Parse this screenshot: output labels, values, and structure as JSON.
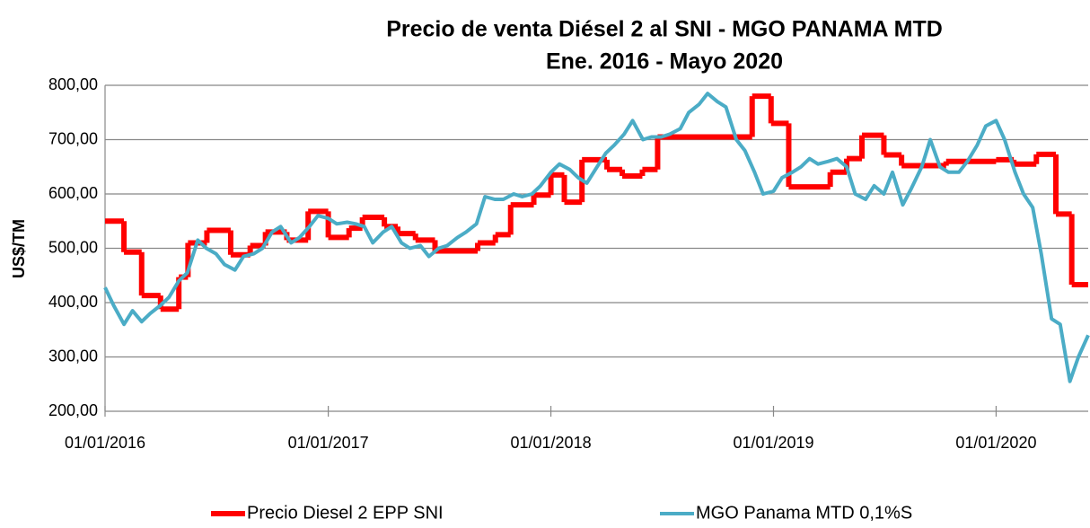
{
  "chart_data": {
    "type": "line",
    "title": "Precio de venta Diésel 2 al SNI  - MGO  PANAMA MTD",
    "subtitle": "Ene. 2016 - Mayo 2020",
    "y_label": "US$/TM",
    "xlim": [
      "01/01/2016",
      "31/05/2020"
    ],
    "xticks": [
      "01/01/2016",
      "01/01/2017",
      "01/01/2018",
      "01/01/2019",
      "01/01/2020"
    ],
    "ylim": [
      200,
      800
    ],
    "yticks": [
      {
        "value": 200,
        "label": "200,00"
      },
      {
        "value": 300,
        "label": "300,00"
      },
      {
        "value": 400,
        "label": "400,00"
      },
      {
        "value": 500,
        "label": "500,00"
      },
      {
        "value": 600,
        "label": "600,00"
      },
      {
        "value": 700,
        "label": "700,00"
      },
      {
        "value": 800,
        "label": "800,00"
      }
    ],
    "grid": true,
    "legend": "bottom",
    "series": [
      {
        "name": "Precio Diesel 2 EPP SNI",
        "color": "#ff0000",
        "step": true,
        "x": [
          "01/01/2016",
          "01/02/2016",
          "01/03/2016",
          "01/04/2016",
          "01/05/2016",
          "16/05/2016",
          "16/06/2016",
          "25/07/2016",
          "26/08/2016",
          "20/09/2016",
          "25/10/2016",
          "29/11/2016",
          "01/01/2017",
          "04/02/2017",
          "26/02/2017",
          "03/04/2017",
          "25/04/2017",
          "24/05/2017",
          "25/06/2017",
          "03/09/2017",
          "02/10/2017",
          "27/10/2017",
          "04/12/2017",
          "01/01/2018",
          "23/01/2018",
          "21/02/2018",
          "03/04/2018",
          "28/04/2018",
          "31/05/2018",
          "25/06/2018",
          "27/11/2018",
          "28/12/2018",
          "26/01/2019",
          "04/04/2019",
          "01/05/2019",
          "26/05/2019",
          "01/07/2019",
          "30/07/2019",
          "11/10/2019",
          "01/01/2020",
          "30/01/2020",
          "07/03/2020",
          "08/04/2020",
          "04/05/2020"
        ],
        "values": [
          550,
          493,
          413,
          388,
          447,
          510,
          533,
          488,
          505,
          530,
          515,
          568,
          520,
          537,
          557,
          540,
          527,
          515,
          495,
          510,
          525,
          580,
          598,
          635,
          585,
          663,
          645,
          633,
          645,
          705,
          780,
          730,
          613,
          640,
          665,
          708,
          672,
          652,
          660,
          663,
          655,
          673,
          563,
          433
        ]
      },
      {
        "name": "MGO Panama MTD 0,1%S",
        "color": "#4bacc6",
        "step": false,
        "x": [
          "01/01/2016",
          "15/01/2016",
          "01/02/2016",
          "15/02/2016",
          "01/03/2016",
          "15/03/2016",
          "01/04/2016",
          "15/04/2016",
          "01/05/2016",
          "15/05/2016",
          "01/06/2016",
          "15/06/2016",
          "01/07/2016",
          "15/07/2016",
          "01/08/2016",
          "15/08/2016",
          "01/09/2016",
          "15/09/2016",
          "01/10/2016",
          "15/10/2016",
          "01/11/2016",
          "15/11/2016",
          "01/12/2016",
          "15/12/2016",
          "01/01/2017",
          "15/01/2017",
          "01/02/2017",
          "15/02/2017",
          "01/03/2017",
          "15/03/2017",
          "01/04/2017",
          "15/04/2017",
          "01/05/2017",
          "15/05/2017",
          "01/06/2017",
          "15/06/2017",
          "01/07/2017",
          "15/07/2017",
          "01/08/2017",
          "15/08/2017",
          "01/09/2017",
          "15/09/2017",
          "01/10/2017",
          "15/10/2017",
          "01/11/2017",
          "15/11/2017",
          "01/12/2017",
          "15/12/2017",
          "01/01/2018",
          "15/01/2018",
          "01/02/2018",
          "15/02/2018",
          "01/03/2018",
          "15/03/2018",
          "01/04/2018",
          "15/04/2018",
          "01/05/2018",
          "15/05/2018",
          "01/06/2018",
          "15/06/2018",
          "01/07/2018",
          "15/07/2018",
          "01/08/2018",
          "15/08/2018",
          "01/09/2018",
          "15/09/2018",
          "01/10/2018",
          "15/10/2018",
          "01/11/2018",
          "15/11/2018",
          "01/12/2018",
          "15/12/2018",
          "01/01/2019",
          "15/01/2019",
          "01/02/2019",
          "15/02/2019",
          "01/03/2019",
          "15/03/2019",
          "01/04/2019",
          "15/04/2019",
          "01/05/2019",
          "15/05/2019",
          "01/06/2019",
          "15/06/2019",
          "01/07/2019",
          "15/07/2019",
          "01/08/2019",
          "15/08/2019",
          "01/09/2019",
          "15/09/2019",
          "01/10/2019",
          "15/10/2019",
          "01/11/2019",
          "15/11/2019",
          "01/12/2019",
          "15/12/2019",
          "01/01/2020",
          "15/01/2020",
          "01/02/2020",
          "15/02/2020",
          "01/03/2020",
          "15/03/2020",
          "01/04/2020",
          "15/04/2020",
          "01/05/2020",
          "15/05/2020",
          "31/05/2020"
        ],
        "values": [
          428,
          395,
          360,
          385,
          365,
          380,
          395,
          410,
          440,
          455,
          515,
          500,
          490,
          470,
          460,
          485,
          490,
          500,
          530,
          540,
          510,
          520,
          540,
          560,
          555,
          545,
          548,
          545,
          540,
          510,
          530,
          540,
          510,
          500,
          505,
          485,
          500,
          505,
          520,
          530,
          545,
          595,
          590,
          590,
          600,
          595,
          600,
          615,
          640,
          655,
          645,
          630,
          620,
          645,
          675,
          690,
          710,
          735,
          700,
          705,
          705,
          710,
          720,
          750,
          765,
          785,
          770,
          760,
          700,
          680,
          640,
          600,
          605,
          630,
          640,
          650,
          665,
          655,
          660,
          665,
          650,
          600,
          590,
          615,
          600,
          640,
          580,
          610,
          650,
          700,
          650,
          640,
          640,
          660,
          690,
          725,
          735,
          700,
          640,
          600,
          575,
          490,
          370,
          360,
          255,
          300,
          340
        ]
      }
    ]
  }
}
